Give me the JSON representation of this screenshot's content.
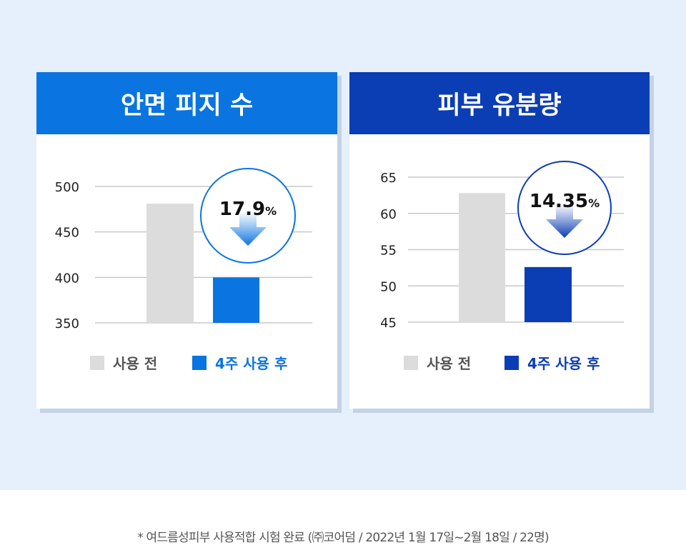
{
  "footnote": "* 여드름성피부 사용적합 시험 완료 (㈜코어덤 / 2022년 1월 17일~2월 18일 / 22명)",
  "colors": {
    "panel_bg": "#e6f0fc",
    "before_bar": "#dcdcdc",
    "grid": "#c8c8c8"
  },
  "chart_data": [
    {
      "type": "bar",
      "title": "안면 피지 수",
      "header_color": "#0a74e0",
      "accent_color": "#0a74e0",
      "categories": [
        "사용 전",
        "4주 사용 후"
      ],
      "values": [
        481,
        400
      ],
      "yticks": [
        350,
        400,
        450,
        500
      ],
      "ylim": [
        350,
        500
      ],
      "badge_value": "17.9",
      "badge_unit": "%",
      "legend": [
        "사용 전",
        "4주 사용 후"
      ],
      "grid": true
    },
    {
      "type": "bar",
      "title": "피부 유분량",
      "header_color": "#0b3db4",
      "accent_color": "#0b3db4",
      "categories": [
        "사용 전",
        "4주 사용 후"
      ],
      "values": [
        62.8,
        52.6
      ],
      "yticks": [
        45,
        50,
        55,
        60,
        65
      ],
      "ylim": [
        45,
        65
      ],
      "badge_value": "14.35",
      "badge_unit": "%",
      "legend": [
        "사용 전",
        "4주 사용 후"
      ],
      "grid": true
    }
  ]
}
